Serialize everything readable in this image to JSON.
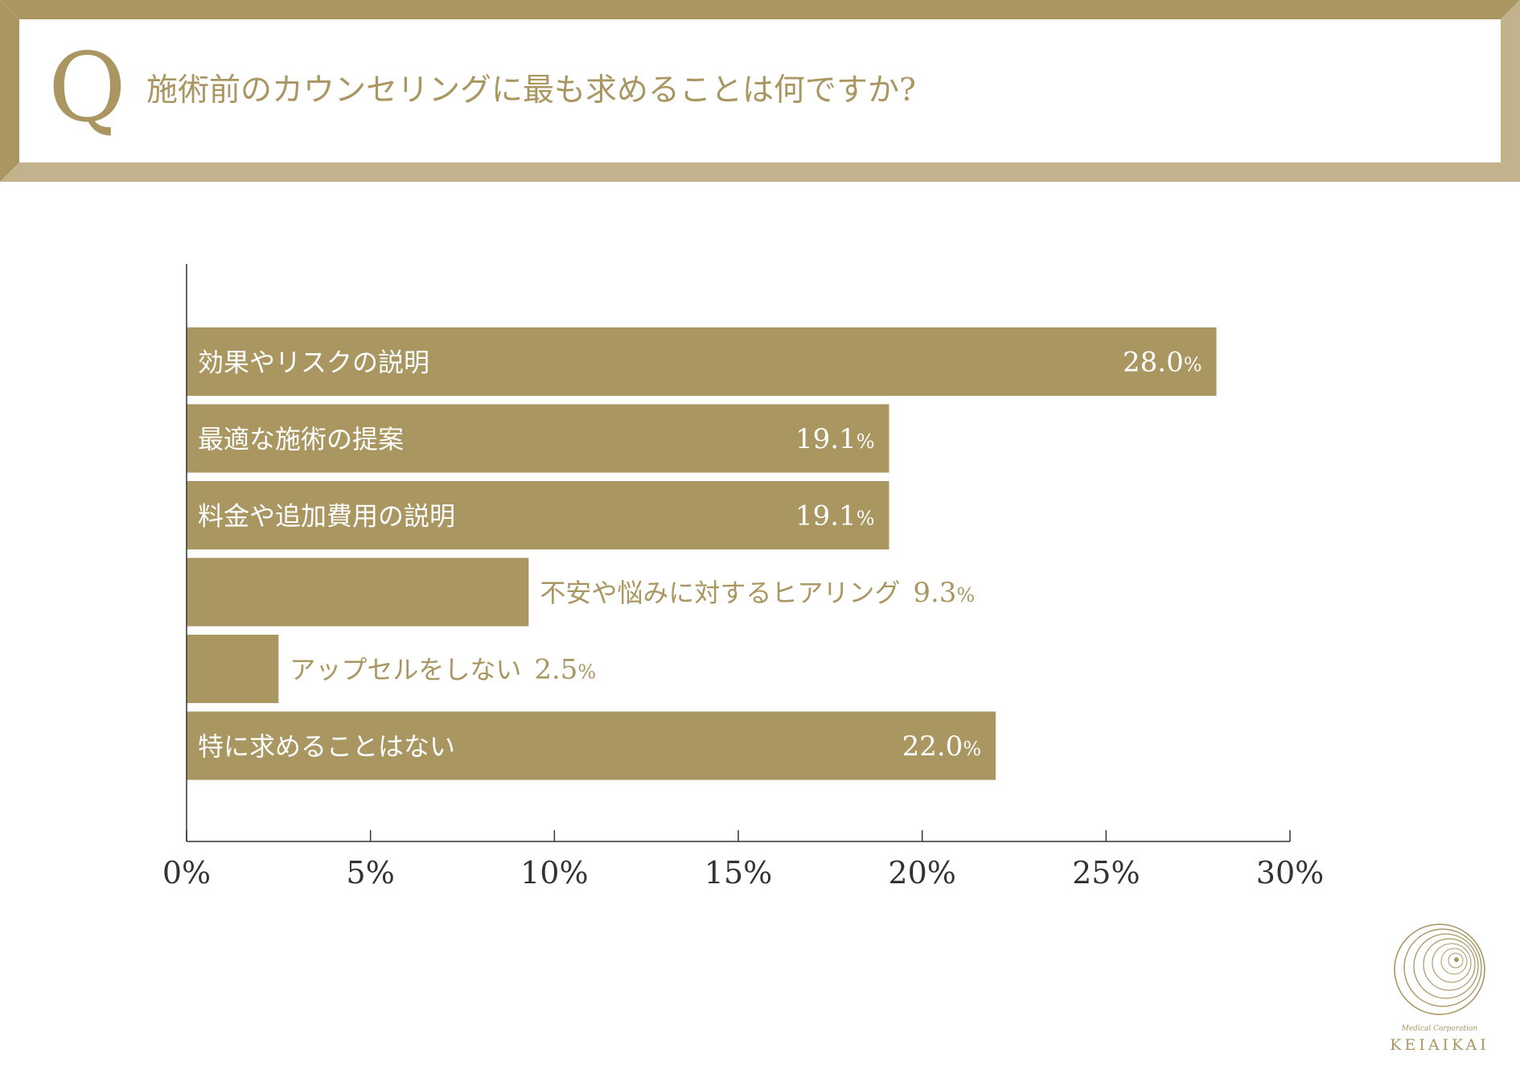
{
  "header": {
    "q_mark": "Q",
    "question": "施術前のカウンセリングに最も求めることは何ですか?"
  },
  "colors": {
    "gold": "#a99660",
    "gold_light": "#c2b38d",
    "axis": "#333333",
    "label_on_bar": "#ffffff",
    "label_outside": "#a99660"
  },
  "chart_data": {
    "type": "bar",
    "orientation": "horizontal",
    "categories": [
      "効果やリスクの説明",
      "最適な施術の提案",
      "料金や追加費用の説明",
      "不安や悩みに対するヒアリング",
      "アップセルをしない",
      "特に求めることはない"
    ],
    "values": [
      28.0,
      19.1,
      19.1,
      9.3,
      2.5,
      22.0
    ],
    "value_labels": [
      "28.0",
      "19.1",
      "19.1",
      "9.3",
      "2.5",
      "22.0"
    ],
    "value_unit": "%",
    "xlim": [
      0,
      30
    ],
    "ticks": [
      0,
      5,
      10,
      15,
      20,
      25,
      30
    ],
    "tick_labels": [
      "0%",
      "5%",
      "10%",
      "15%",
      "20%",
      "25%",
      "30%"
    ],
    "grid": false,
    "legend": "none",
    "title": "施術前のカウンセリングに最も求めることは何ですか?"
  },
  "logo": {
    "subtitle": "Medical Corporation",
    "name": "KEIAIKAI"
  }
}
